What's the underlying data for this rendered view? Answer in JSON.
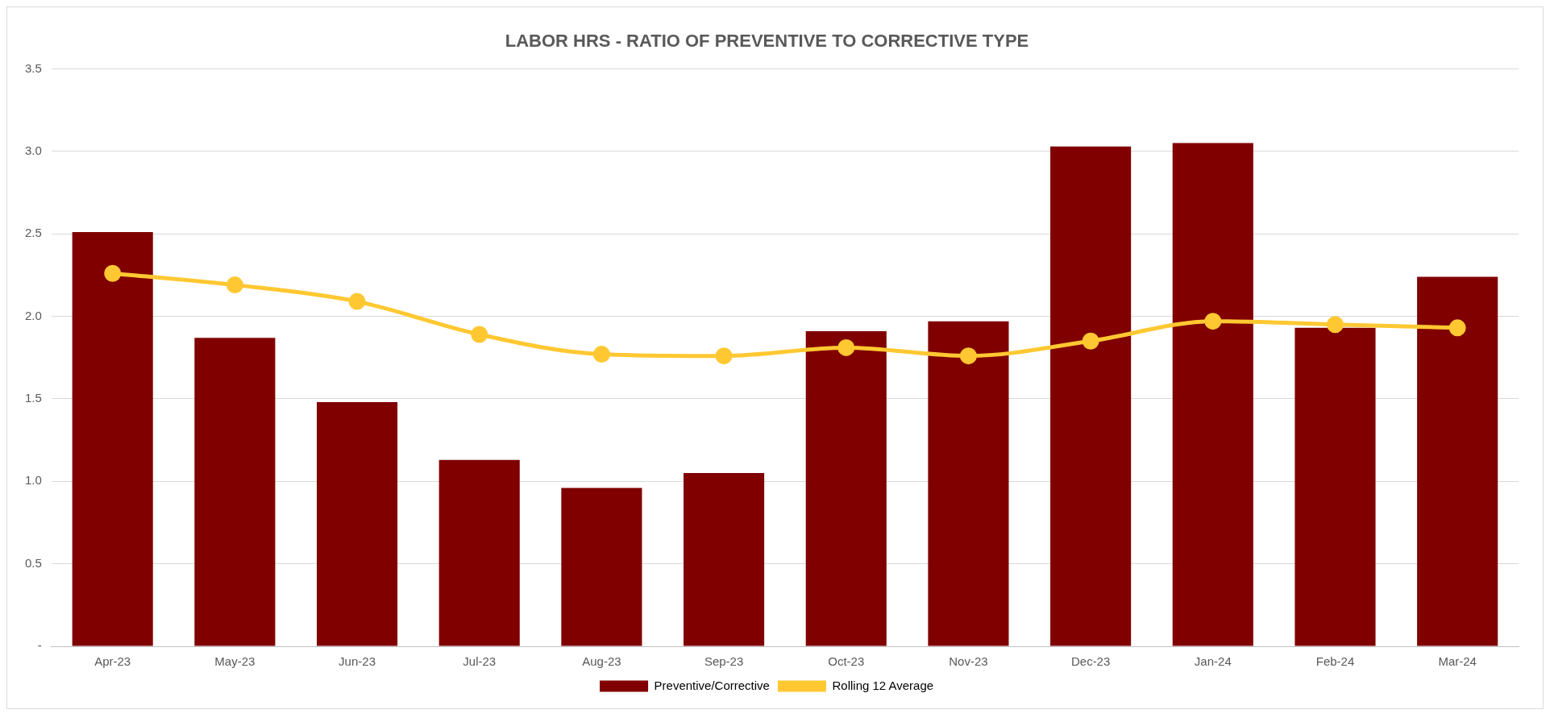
{
  "chart_data": {
    "type": "bar",
    "title": "LABOR HRS - RATIO OF PREVENTIVE TO CORRECTIVE TYPE",
    "categories": [
      "Apr-23",
      "May-23",
      "Jun-23",
      "Jul-23",
      "Aug-23",
      "Sep-23",
      "Oct-23",
      "Nov-23",
      "Dec-23",
      "Jan-24",
      "Feb-24",
      "Mar-24"
    ],
    "series": [
      {
        "name": "Preventive/Corrective",
        "color": "#800000",
        "values": [
          2.51,
          1.87,
          1.48,
          1.13,
          0.96,
          1.05,
          1.91,
          1.97,
          3.03,
          3.05,
          1.93,
          2.24
        ]
      },
      {
        "name": "Rolling 12 Average",
        "type": "line",
        "color": "#ffc832",
        "marker": "circle",
        "values": [
          2.26,
          2.19,
          2.09,
          1.89,
          1.77,
          1.76,
          1.81,
          1.76,
          1.85,
          1.97,
          1.95,
          1.93
        ]
      }
    ],
    "ylim": [
      0,
      3.5
    ],
    "yticks": [
      {
        "value": 0,
        "label": "-"
      },
      {
        "value": 0.5,
        "label": "0.5"
      },
      {
        "value": 1,
        "label": "1.0"
      },
      {
        "value": 1.5,
        "label": "1.5"
      },
      {
        "value": 2,
        "label": "2.0"
      },
      {
        "value": 2.5,
        "label": "2.5"
      },
      {
        "value": 3,
        "label": "3.0"
      },
      {
        "value": 3.5,
        "label": "3.5"
      }
    ],
    "grid": "y",
    "legend": "bottom"
  }
}
